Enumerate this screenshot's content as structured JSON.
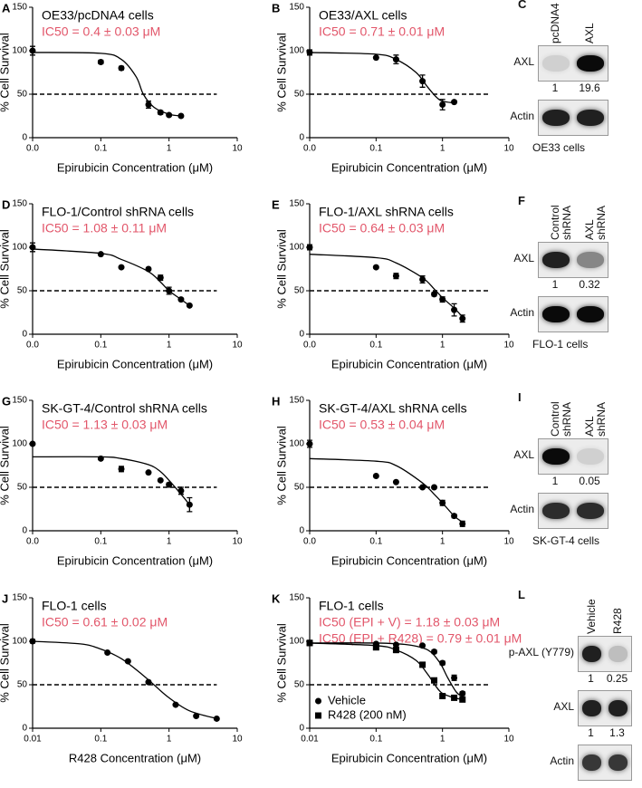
{
  "chart_data": [
    {
      "type": "scatter",
      "panel": "A",
      "title": "OE33/pcDNA4 cells",
      "annotations": [
        "IC50 = 0.4 ± 0.03 μM"
      ],
      "xlabel": "Epirubicin Concentration (μM)",
      "ylabel": "% Cell Survival",
      "xscale": "log",
      "xlim": [
        0.01,
        10
      ],
      "xticks": [
        {
          "value": 0.01,
          "label": "0.0"
        },
        0.1,
        1,
        10
      ],
      "ylim": [
        0,
        150
      ],
      "yticks": [
        0,
        50,
        100,
        150
      ],
      "hline": 50,
      "series": [
        {
          "color": "#000000",
          "marker": "circle",
          "x": [
            0.01,
            0.1,
            0.2,
            0.5,
            0.75,
            1,
            1.5
          ],
          "values": [
            100,
            87,
            80,
            38,
            29,
            26,
            25
          ],
          "errors": [
            5,
            2,
            2,
            4,
            2,
            1,
            1
          ],
          "fit_x": [
            0.01,
            0.1,
            0.2,
            0.33,
            0.42,
            0.6,
            1,
            1.5
          ],
          "fit_values": [
            98,
            97,
            90,
            70,
            50,
            35,
            27,
            25
          ]
        }
      ]
    },
    {
      "type": "scatter",
      "panel": "B",
      "title": "OE33/AXL cells",
      "annotations": [
        "IC50 = 0.71 ± 0.01 μM"
      ],
      "xlabel": "Epirubicin Concentration (μM)",
      "ylabel": "% Cell Survival",
      "xscale": "log",
      "xlim": [
        0.01,
        10
      ],
      "xticks": [
        {
          "value": 0.01,
          "label": "0.0"
        },
        0.1,
        1,
        10
      ],
      "ylim": [
        0,
        150
      ],
      "yticks": [
        0,
        50,
        100,
        150
      ],
      "hline": 50,
      "series": [
        {
          "color": "#000000",
          "marker": "circle",
          "x": [
            0.01,
            0.1,
            0.2,
            0.5,
            1,
            1.5
          ],
          "values": [
            98,
            92,
            90,
            65,
            38,
            41
          ],
          "errors": [
            3,
            1,
            5,
            7,
            6,
            1
          ],
          "fit_x": [
            0.01,
            0.1,
            0.2,
            0.4,
            0.6,
            0.8,
            1,
            1.5
          ],
          "fit_values": [
            98,
            96,
            90,
            75,
            58,
            47,
            42,
            40
          ]
        }
      ]
    },
    {
      "type": "scatter",
      "panel": "D",
      "title": "FLO-1/Control shRNA cells",
      "annotations": [
        "IC50 = 1.08 ± 0.11 μM"
      ],
      "xlabel": "Epirubicin Concentration (μM)",
      "ylabel": "% Cell Survival",
      "xscale": "log",
      "xlim": [
        0.01,
        10
      ],
      "xticks": [
        {
          "value": 0.01,
          "label": "0.0"
        },
        0.1,
        1,
        10
      ],
      "ylim": [
        0,
        150
      ],
      "yticks": [
        0,
        50,
        100,
        150
      ],
      "hline": 50,
      "series": [
        {
          "color": "#000000",
          "marker": "circle",
          "x": [
            0.01,
            0.1,
            0.2,
            0.5,
            0.75,
            1,
            1.5,
            2
          ],
          "values": [
            100,
            92,
            77,
            75,
            65,
            50,
            40,
            33
          ],
          "errors": [
            5,
            1,
            1,
            1,
            3,
            4,
            1,
            1
          ],
          "fit_x": [
            0.01,
            0.1,
            0.2,
            0.5,
            0.75,
            1,
            1.5,
            2
          ],
          "fit_values": [
            98,
            93,
            86,
            72,
            60,
            50,
            40,
            33
          ]
        }
      ]
    },
    {
      "type": "scatter",
      "panel": "E",
      "title": "FLO-1/AXL shRNA cells",
      "annotations": [
        "IC50 = 0.64 ± 0.03 μM"
      ],
      "xlabel": "Epirubicin Concentration (μM)",
      "ylabel": "% Cell Survival",
      "xscale": "log",
      "xlim": [
        0.01,
        10
      ],
      "xticks": [
        {
          "value": 0.01,
          "label": "0.0"
        },
        0.1,
        1,
        10
      ],
      "ylim": [
        0,
        150
      ],
      "yticks": [
        0,
        50,
        100,
        150
      ],
      "hline": 50,
      "series": [
        {
          "color": "#000000",
          "marker": "circle",
          "x": [
            0.01,
            0.1,
            0.2,
            0.5,
            0.75,
            1,
            1.5,
            2
          ],
          "values": [
            100,
            77,
            67,
            63,
            46,
            40,
            28,
            18
          ],
          "errors": [
            3,
            1,
            3,
            4,
            2,
            3,
            7,
            4
          ],
          "fit_x": [
            0.01,
            0.1,
            0.2,
            0.5,
            0.75,
            1,
            1.5,
            2
          ],
          "fit_values": [
            92,
            88,
            82,
            65,
            52,
            42,
            30,
            20
          ]
        }
      ]
    },
    {
      "type": "scatter",
      "panel": "G",
      "title": "SK-GT-4/Control shRNA cells",
      "annotations": [
        "IC50 = 1.13 ± 0.03 μM"
      ],
      "xlabel": "Epirubicin Concentration (μM)",
      "ylabel": "% Cell Survival",
      "xscale": "log",
      "xlim": [
        0.01,
        10
      ],
      "xticks": [
        {
          "value": 0.01,
          "label": "0.0"
        },
        0.1,
        1,
        10
      ],
      "ylim": [
        0,
        150
      ],
      "yticks": [
        0,
        50,
        100,
        150
      ],
      "hline": 50,
      "series": [
        {
          "color": "#000000",
          "marker": "circle",
          "x": [
            0.01,
            0.1,
            0.2,
            0.5,
            0.75,
            1,
            1.5,
            2
          ],
          "values": [
            100,
            83,
            71,
            67,
            58,
            53,
            46,
            30
          ],
          "errors": [
            null,
            1,
            3,
            1,
            1,
            2,
            4,
            8
          ],
          "fit_x": [
            0.01,
            0.1,
            0.2,
            0.5,
            0.75,
            1,
            1.5,
            2
          ],
          "fit_values": [
            85,
            85,
            83,
            76,
            68,
            58,
            42,
            30
          ]
        }
      ]
    },
    {
      "type": "scatter",
      "panel": "H",
      "title": "SK-GT-4/AXL shRNA cells",
      "annotations": [
        "IC50 = 0.53 ± 0.04 μM"
      ],
      "xlabel": "Epirubicin Concentration (μM)",
      "ylabel": "% Cell Survival",
      "xscale": "log",
      "xlim": [
        0.01,
        10
      ],
      "xticks": [
        {
          "value": 0.01,
          "label": "0.0"
        },
        0.1,
        1,
        10
      ],
      "ylim": [
        0,
        150
      ],
      "yticks": [
        0,
        50,
        100,
        150
      ],
      "hline": 50,
      "series": [
        {
          "color": "#000000",
          "marker": "circle",
          "x": [
            0.01,
            0.1,
            0.2,
            0.5,
            0.75,
            1,
            1.5,
            2
          ],
          "values": [
            100,
            63,
            56,
            50,
            50,
            32,
            17,
            8
          ],
          "errors": [
            4,
            null,
            null,
            null,
            null,
            3,
            2,
            3
          ],
          "fit_x": [
            0.01,
            0.1,
            0.2,
            0.5,
            0.75,
            1,
            1.5,
            2
          ],
          "fit_values": [
            83,
            80,
            75,
            55,
            42,
            32,
            17,
            10
          ]
        }
      ]
    },
    {
      "type": "scatter",
      "panel": "J",
      "title": "FLO-1 cells",
      "annotations": [
        "IC50 = 0.61 ± 0.02 μM"
      ],
      "xlabel": "R428 Concentration (μM)",
      "ylabel": "% Cell Survival",
      "xscale": "log",
      "xlim": [
        0.01,
        10
      ],
      "xticks": [
        0.01,
        0.1,
        1,
        10
      ],
      "ylim": [
        0,
        150
      ],
      "yticks": [
        0,
        50,
        100,
        150
      ],
      "hline": 50,
      "series": [
        {
          "color": "#000000",
          "marker": "circle",
          "x": [
            0.01,
            0.125,
            0.25,
            0.5,
            1.25,
            2.5,
            5
          ],
          "values": [
            100,
            87,
            77,
            53,
            27,
            14,
            11
          ],
          "errors": [
            2,
            null,
            null,
            null,
            null,
            null,
            null
          ],
          "fit_x": [
            0.01,
            0.05,
            0.1,
            0.2,
            0.4,
            0.6,
            1,
            2,
            5
          ],
          "fit_values": [
            100,
            97,
            91,
            80,
            62,
            50,
            35,
            20,
            11
          ]
        }
      ]
    },
    {
      "type": "scatter",
      "panel": "K",
      "title": "FLO-1 cells",
      "annotations": [
        "IC50 (EPI + V) = 1.18 ± 0.03 μM",
        "IC50 (EPI + R428) = 0.79 ± 0.01 μM"
      ],
      "xlabel": "Epirubicin Concentration (μM)",
      "ylabel": "% Cell Survival",
      "xscale": "log",
      "xlim": [
        0.01,
        10
      ],
      "xticks": [
        0.01,
        0.1,
        1,
        10
      ],
      "ylim": [
        0,
        150
      ],
      "yticks": [
        0,
        50,
        100,
        150
      ],
      "hline": 50,
      "legend": "lower left",
      "series": [
        {
          "name": "Vehicle",
          "color": "#000000",
          "marker": "circle",
          "x": [
            0.01,
            0.1,
            0.2,
            0.5,
            0.75,
            1,
            1.5,
            2
          ],
          "values": [
            98,
            97,
            96,
            95,
            88,
            75,
            58,
            40
          ],
          "errors": [
            3,
            1,
            1,
            1,
            2,
            2,
            3,
            2
          ],
          "fit_x": [
            0.01,
            0.1,
            0.3,
            0.6,
            0.9,
            1.2,
            1.6,
            2
          ],
          "fit_values": [
            98,
            98,
            96,
            90,
            76,
            58,
            42,
            36
          ]
        },
        {
          "name": "R428 (200 nM)",
          "color": "#000000",
          "marker": "square",
          "x": [
            0.01,
            0.1,
            0.2,
            0.5,
            0.75,
            1,
            1.5,
            2
          ],
          "values": [
            98,
            93,
            90,
            73,
            55,
            37,
            35,
            33
          ],
          "errors": [
            3,
            2,
            3,
            2,
            2,
            2,
            1,
            1
          ],
          "fit_x": [
            0.01,
            0.1,
            0.2,
            0.4,
            0.6,
            0.8,
            1,
            1.5,
            2
          ],
          "fit_values": [
            98,
            95,
            90,
            78,
            62,
            48,
            40,
            35,
            33
          ]
        }
      ]
    }
  ],
  "blots": [
    {
      "panel": "C",
      "lanes": [
        "pcDNA4",
        "AXL"
      ],
      "rows": [
        {
          "label": "AXL",
          "quant": [
            1,
            19.6
          ]
        },
        {
          "label": "Actin"
        }
      ],
      "footer": "OE33 cells"
    },
    {
      "panel": "F",
      "lanes": [
        "Control shRNA",
        "AXL shRNA"
      ],
      "rows": [
        {
          "label": "AXL",
          "quant": [
            1,
            0.32
          ]
        },
        {
          "label": "Actin"
        }
      ],
      "footer": "FLO-1 cells"
    },
    {
      "panel": "I",
      "lanes": [
        "Control shRNA",
        "AXL shRNA"
      ],
      "rows": [
        {
          "label": "AXL",
          "quant": [
            1,
            0.05
          ]
        },
        {
          "label": "Actin"
        }
      ],
      "footer": "SK-GT-4 cells"
    },
    {
      "panel": "L",
      "lanes": [
        "Vehicle",
        "R428"
      ],
      "rows": [
        {
          "label": "p-AXL (Y779)",
          "quant": [
            1,
            0.25
          ]
        },
        {
          "label": "AXL",
          "quant": [
            1,
            1.3
          ]
        },
        {
          "label": "Actin"
        }
      ],
      "footer": "FLO-1 cells"
    }
  ]
}
